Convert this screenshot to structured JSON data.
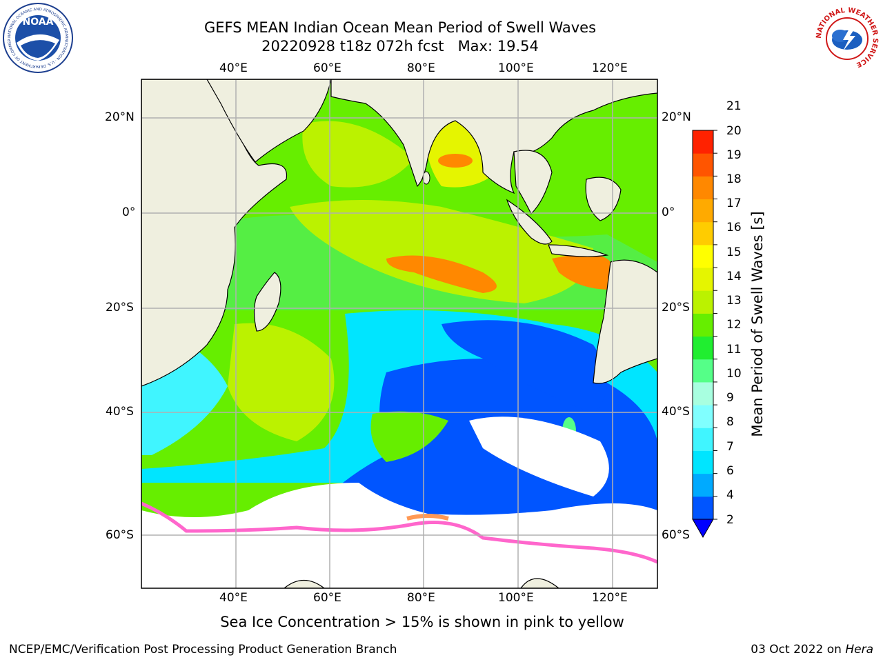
{
  "header": {
    "title_line1": "GEFS MEAN Indian Ocean Mean Period of Swell Waves",
    "title_line2": "20220928 t18z 072h fcst   Max: 19.54"
  },
  "map": {
    "lon_labels": [
      "40°E",
      "60°E",
      "80°E",
      "100°E",
      "120°E"
    ],
    "lat_labels": [
      "20°N",
      "0°",
      "20°S",
      "40°S",
      "60°S"
    ],
    "colors": {
      "land": "#efefdf",
      "sea_ice": "#ffffff",
      "grid": "#b0b0b0"
    }
  },
  "colorbar": {
    "label": "Mean Period of Swell Waves [s]",
    "ticks": [
      "2",
      "4",
      "6",
      "7",
      "8",
      "9",
      "10",
      "11",
      "12",
      "13",
      "14",
      "15",
      "16",
      "17",
      "18",
      "19",
      "20",
      "21"
    ],
    "colors": [
      "#0055ff",
      "#00aaff",
      "#00e5ff",
      "#40f5ff",
      "#80ffff",
      "#a8ffe0",
      "#55ff88",
      "#20ee30",
      "#66ee00",
      "#bbf200",
      "#e5f500",
      "#ffff00",
      "#ffcc00",
      "#ffaa00",
      "#ff8800",
      "#ff5500",
      "#ff2200",
      "#ff0000"
    ],
    "extend_color": "#0000ff"
  },
  "note": "Sea Ice Concentration > 15% is shown in pink to yellow",
  "footer": {
    "left": "NCEP/EMC/Verification Post Processing Product Generation Branch",
    "right_date": "03 Oct 2022 on ",
    "right_machine": "Hera"
  },
  "logos": {
    "noaa_text": "NOAA",
    "noaa_ring": "NATIONAL OCEANIC AND ATMOSPHERIC ADMINISTRATION · U.S. DEPARTMENT OF COMMERCE ·",
    "nws_ring": "NATIONAL WEATHER SERVICE"
  }
}
